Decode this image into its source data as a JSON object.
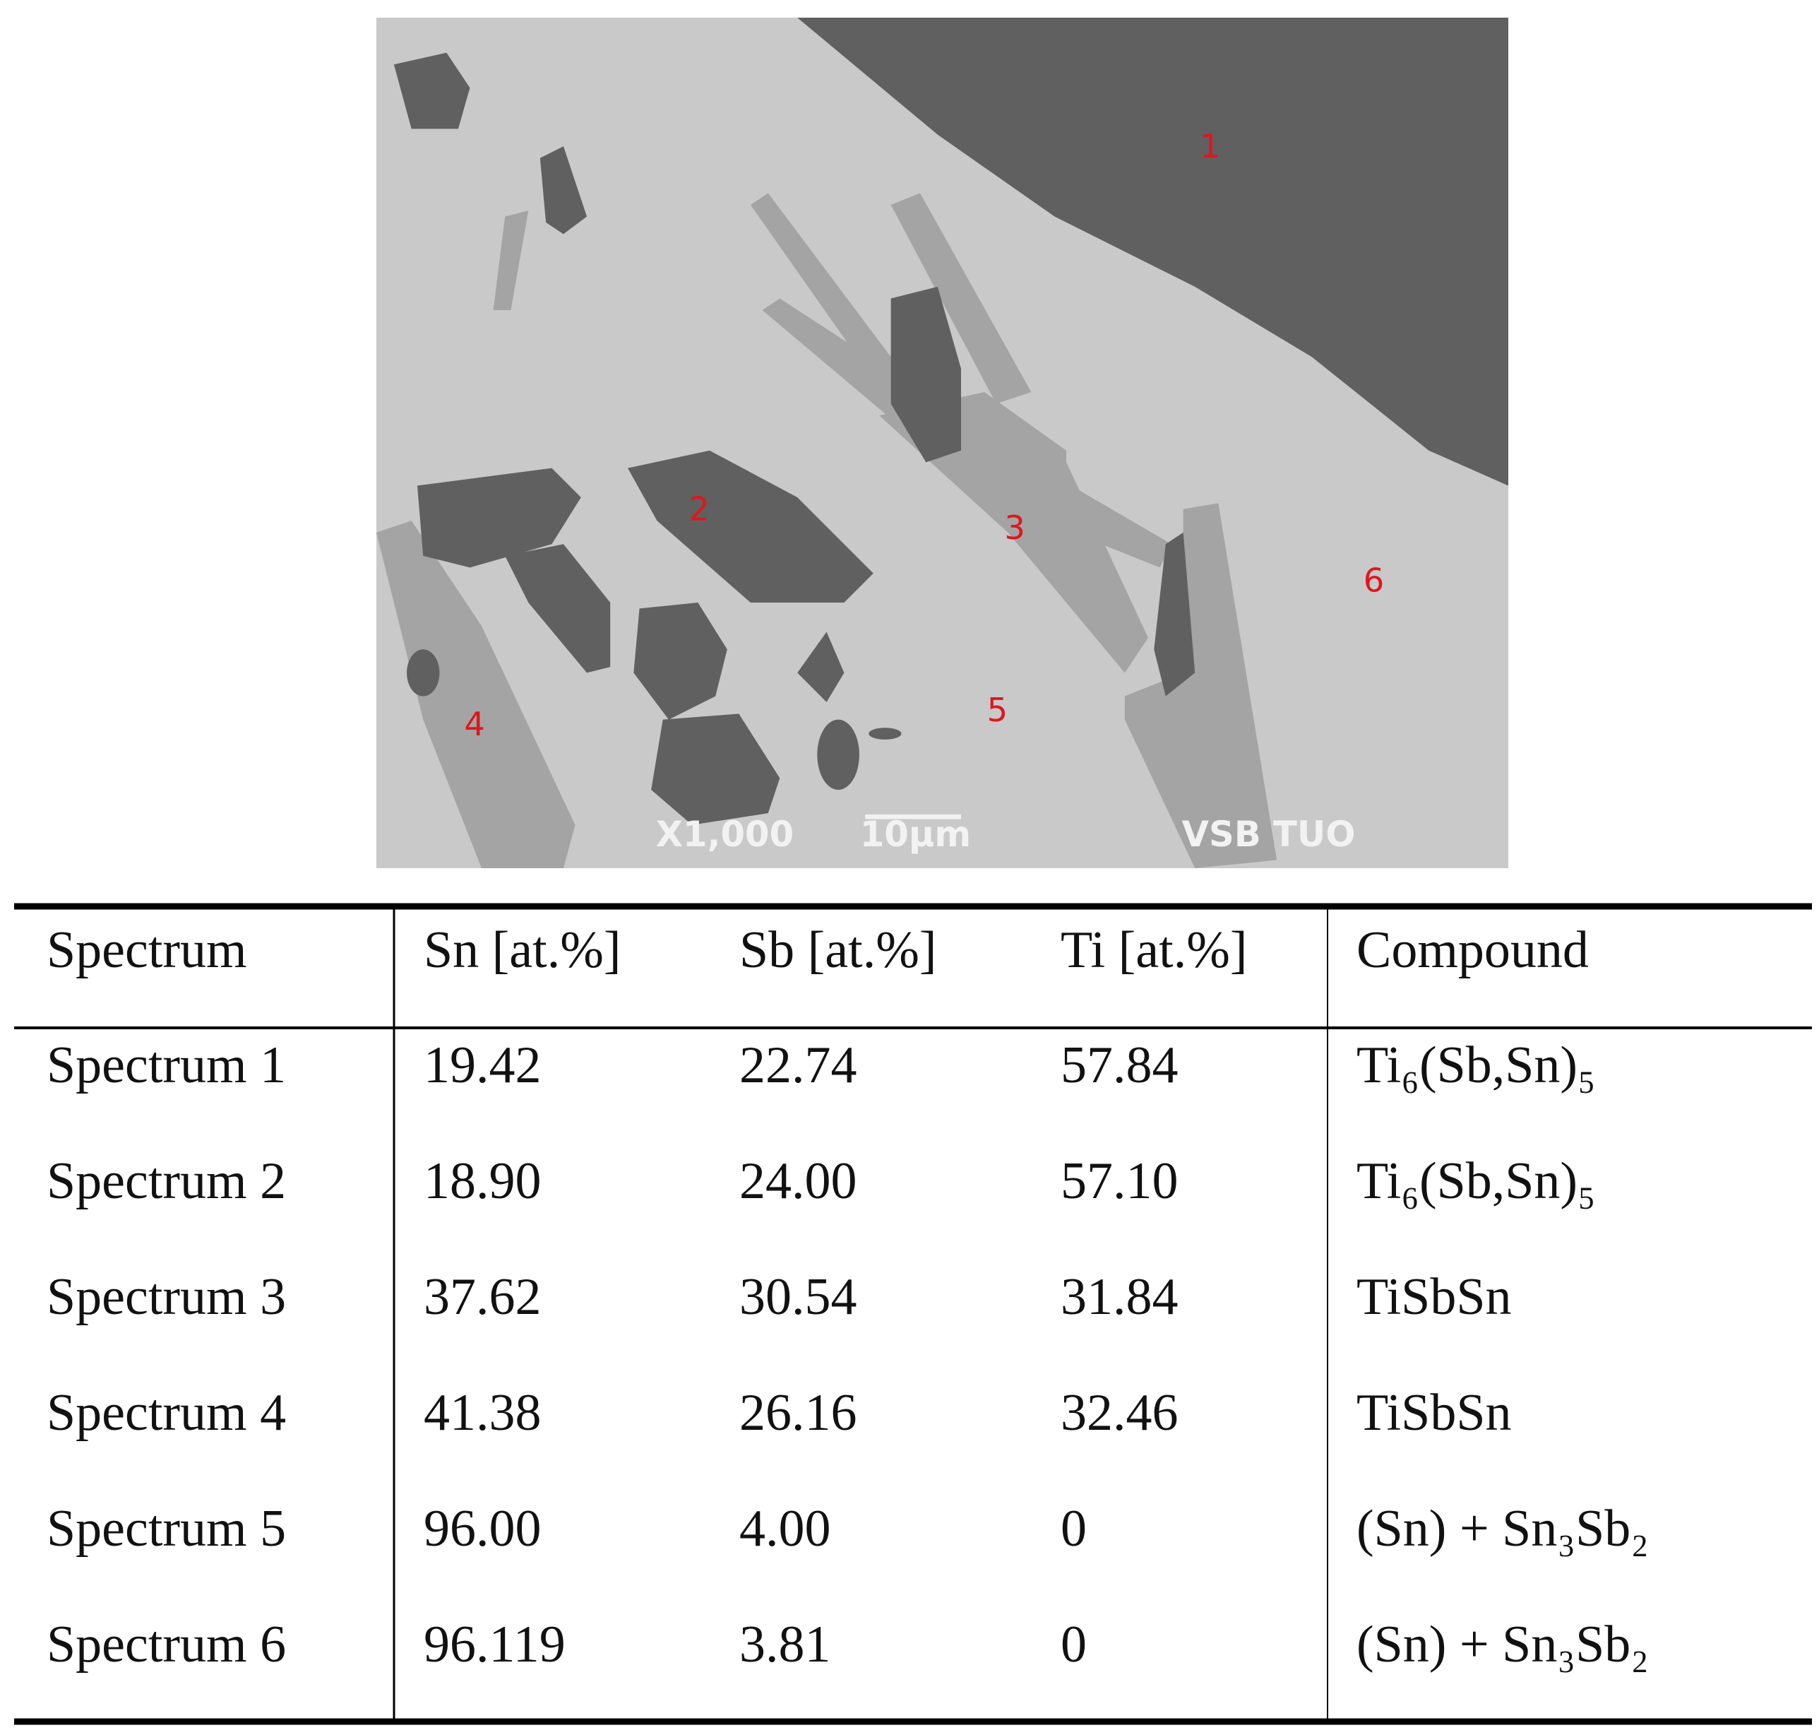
{
  "figure": {
    "labels": [
      "1",
      "2",
      "3",
      "4",
      "5",
      "6"
    ],
    "magnification": "X1,000",
    "scale_bar": "10µm",
    "watermark": "VSB TUO"
  },
  "table": {
    "header": [
      "Spectrum",
      "Sn [at.%]",
      "Sb [at.%]",
      "Ti [at.%]",
      "Compound"
    ],
    "rows": [
      [
        "Spectrum 1",
        "19.42",
        "22.74",
        "57.84",
        "Ti₆(Sb,Sn)₅"
      ],
      [
        "Spectrum 2",
        "18.90",
        "24.00",
        "57.10",
        "Ti₆(Sb,Sn)₅"
      ],
      [
        "Spectrum 3",
        "37.62",
        "30.54",
        "31.84",
        "TiSbSn"
      ],
      [
        "Spectrum 4",
        "41.38",
        "26.16",
        "32.46",
        "TiSbSn"
      ],
      [
        "Spectrum 5",
        "96.00",
        "4.00",
        "0",
        "(Sn) + Sn₃Sb₂"
      ],
      [
        "Spectrum 6",
        "96.119",
        "3.81",
        "0",
        "(Sn) + Sn₃Sb₂"
      ]
    ]
  }
}
